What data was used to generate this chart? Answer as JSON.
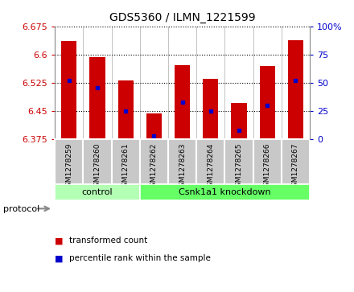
{
  "title": "GDS5360 / ILMN_1221599",
  "samples": [
    "GSM1278259",
    "GSM1278260",
    "GSM1278261",
    "GSM1278262",
    "GSM1278263",
    "GSM1278264",
    "GSM1278265",
    "GSM1278266",
    "GSM1278267"
  ],
  "transformed_count": [
    6.635,
    6.593,
    6.532,
    6.443,
    6.572,
    6.535,
    6.472,
    6.57,
    6.637
  ],
  "percentile_rank": [
    52,
    46,
    25,
    3,
    33,
    25,
    8,
    30,
    52
  ],
  "ylim": [
    6.375,
    6.675
  ],
  "yticks": [
    6.375,
    6.45,
    6.525,
    6.6,
    6.675
  ],
  "y2lim": [
    0,
    100
  ],
  "y2ticks": [
    0,
    25,
    50,
    75,
    100
  ],
  "bar_color": "#cc0000",
  "blue_color": "#0000cc",
  "bar_width": 0.55,
  "baseline": 6.375,
  "protocol_groups": [
    {
      "label": "control",
      "start": 0,
      "end": 2,
      "color": "#b3ffb3"
    },
    {
      "label": "Csnk1a1 knockdown",
      "start": 3,
      "end": 8,
      "color": "#66ff66"
    }
  ],
  "legend_items": [
    {
      "label": "transformed count",
      "color": "#cc0000"
    },
    {
      "label": "percentile rank within the sample",
      "color": "#0000cc"
    }
  ],
  "protocol_label": "protocol",
  "ylabel_color_left": "#cc0000",
  "ylabel_color_right": "#0000cc",
  "tick_area_bg": "#c8c8c8",
  "cell_divider_color": "#ffffff",
  "main_bg": "#ffffff"
}
